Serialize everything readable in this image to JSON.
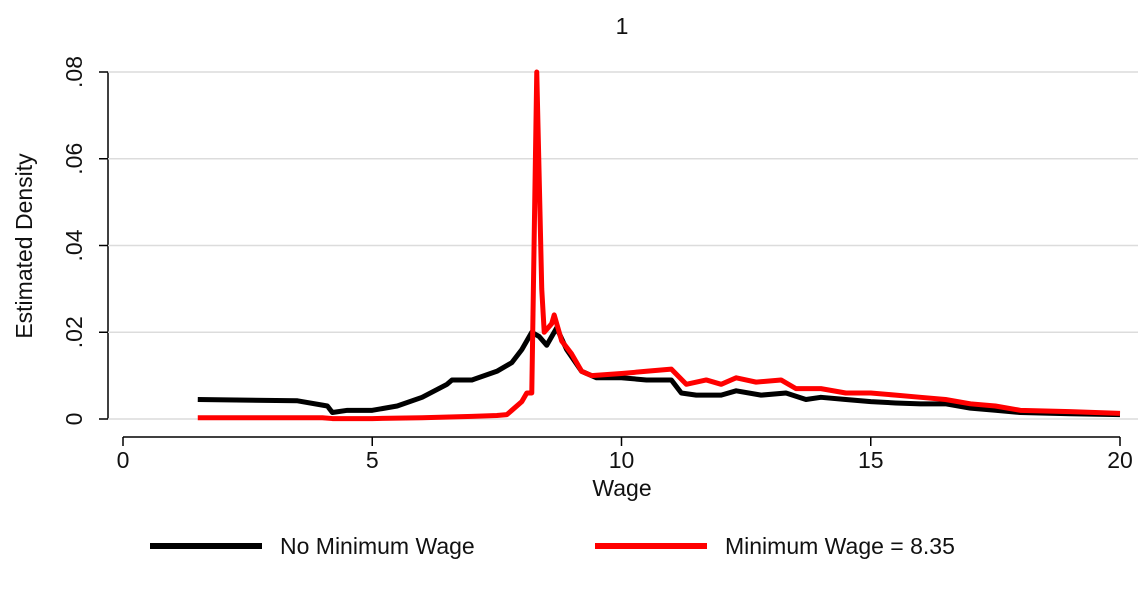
{
  "chart_data": {
    "type": "line",
    "title": "1",
    "x_label": "Wage",
    "y_label": "Estimated Density",
    "xlim": [
      0,
      20
    ],
    "xticks": [
      0,
      5,
      10,
      15,
      20
    ],
    "ylim": [
      0,
      0.08
    ],
    "yticks": [
      0,
      {
        "value": 0.02,
        "label": ".02"
      },
      {
        "value": 0.04,
        "label": ".04"
      },
      {
        "value": 0.06,
        "label": ".06"
      },
      {
        "value": 0.08,
        "label": ".08"
      }
    ],
    "grid": true,
    "legend": "bottom",
    "series": [
      {
        "name": "No Minimum Wage",
        "color": "#000000",
        "x": [
          1.5,
          3.5,
          4.0,
          4.1,
          4.2,
          4.5,
          5.0,
          5.5,
          6.0,
          6.5,
          6.6,
          7.0,
          7.5,
          7.8,
          8.0,
          8.2,
          8.35,
          8.5,
          8.7,
          8.9,
          9.2,
          9.5,
          10.0,
          10.5,
          11.0,
          11.2,
          11.5,
          12.0,
          12.3,
          12.8,
          13.3,
          13.7,
          14.0,
          14.5,
          15.0,
          15.5,
          16.0,
          16.5,
          17.0,
          17.5,
          18.0,
          19.0,
          20.0
        ],
        "values": [
          0.0045,
          0.0042,
          0.0032,
          0.003,
          0.0015,
          0.002,
          0.002,
          0.003,
          0.005,
          0.008,
          0.009,
          0.009,
          0.011,
          0.013,
          0.016,
          0.02,
          0.019,
          0.017,
          0.021,
          0.016,
          0.011,
          0.0095,
          0.0095,
          0.009,
          0.009,
          0.006,
          0.0055,
          0.0055,
          0.0065,
          0.0055,
          0.006,
          0.0045,
          0.005,
          0.0045,
          0.004,
          0.0037,
          0.0035,
          0.0035,
          0.0025,
          0.002,
          0.0015,
          0.0012,
          0.001
        ]
      },
      {
        "name": "Minimum Wage = 8.35",
        "color": "#ff0000",
        "x": [
          1.5,
          4.0,
          4.2,
          5.0,
          6.0,
          7.0,
          7.5,
          7.7,
          7.8,
          8.0,
          8.1,
          8.2,
          8.3,
          8.4,
          8.45,
          8.6,
          8.65,
          8.8,
          9.0,
          9.2,
          9.4,
          10.0,
          10.5,
          11.0,
          11.3,
          11.7,
          12.0,
          12.3,
          12.7,
          13.2,
          13.5,
          14.0,
          14.5,
          15.0,
          15.5,
          16.0,
          16.5,
          17.0,
          17.5,
          18.0,
          19.0,
          20.0
        ],
        "values": [
          0.0003,
          0.0003,
          0.0001,
          0.0001,
          0.0003,
          0.0006,
          0.0008,
          0.001,
          0.002,
          0.004,
          0.006,
          0.006,
          0.08,
          0.03,
          0.02,
          0.022,
          0.024,
          0.018,
          0.015,
          0.011,
          0.01,
          0.0105,
          0.011,
          0.0115,
          0.008,
          0.009,
          0.008,
          0.0095,
          0.0085,
          0.009,
          0.007,
          0.007,
          0.006,
          0.006,
          0.0055,
          0.005,
          0.0045,
          0.0035,
          0.003,
          0.002,
          0.0017,
          0.0013
        ]
      }
    ]
  }
}
